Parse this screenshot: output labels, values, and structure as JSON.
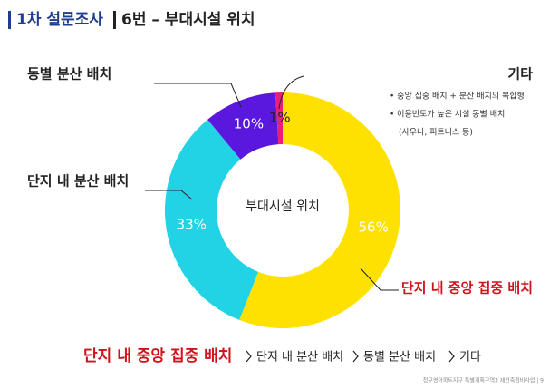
{
  "header": {
    "section": "1차 설문조사",
    "title": "6번 – 부대시설 위치"
  },
  "chart_data": {
    "type": "donut",
    "center_label": "부대시설 위치",
    "categories": [
      "단지 내 중앙 집중 배치",
      "단지 내 분산 배치",
      "동별 분산 배치",
      "기타"
    ],
    "values": [
      56,
      33,
      10,
      1
    ],
    "value_labels": [
      "56%",
      "33%",
      "10%",
      "1%"
    ],
    "colors": [
      "#ffe100",
      "#22d3e6",
      "#5a17de",
      "#e4207c"
    ],
    "note": [
      "• 중앙 집중 배치 + 분산 배치의 복합형",
      "• 이용빈도가 높은 시설 동별 배치",
      "(사우나, 피트니스 등)"
    ]
  },
  "summary": {
    "items": [
      "단지 내 중앙 집중 배치",
      "단지 내 분산 배치",
      "동별 분산 배치",
      "기타"
    ]
  },
  "footer": {
    "text": "청구영아파트지구 특별계획구역3 재건축정비사업 | 9"
  }
}
